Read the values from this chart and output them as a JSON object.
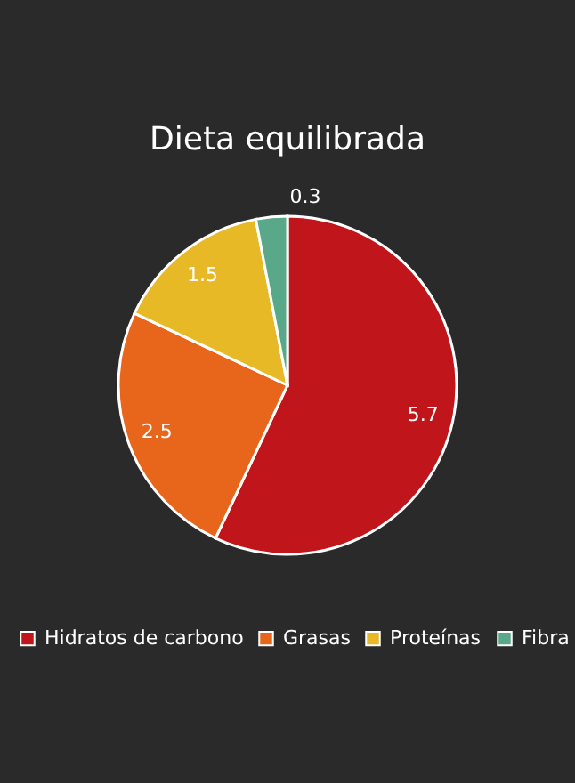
{
  "chart_data": {
    "type": "pie",
    "title": "Dieta equilibrada",
    "categories": [
      "Hidratos de carbono",
      "Grasas",
      "Proteínas",
      "Fibra"
    ],
    "values": [
      5.7,
      2.5,
      1.5,
      0.3
    ],
    "colors": [
      "#c0161b",
      "#e8661b",
      "#e8b927",
      "#5aa88a"
    ],
    "data_labels": true,
    "legend": "bottom"
  }
}
